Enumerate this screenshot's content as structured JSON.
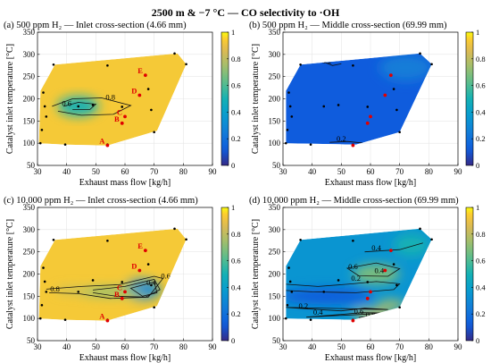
{
  "figure_title": "2500 m & −7 °C — CO selectivity to ·OH",
  "chart_data": [
    {
      "type": "heatmap",
      "panel": "(a)",
      "title": "(a) 500 ppm H₂ — Inlet cross-section (4.66 mm)",
      "xlabel": "Exhaust mass flow [kg/h]",
      "ylabel": "Catalyst inlet temperature [°C]",
      "xlim": [
        30,
        90
      ],
      "ylim": [
        50,
        350
      ],
      "xticks": [
        30,
        40,
        50,
        60,
        70,
        80,
        90
      ],
      "yticks": [
        50,
        100,
        150,
        200,
        250,
        300,
        350
      ],
      "colorbar": {
        "ticks": [
          0,
          0.2,
          0.4,
          0.6,
          0.8,
          1
        ],
        "range": [
          0,
          1
        ],
        "colormap": "parula"
      },
      "hull": [
        [
          30.5,
          100
        ],
        [
          39.5,
          97
        ],
        [
          54,
          95
        ],
        [
          71,
          128
        ],
        [
          81,
          278
        ],
        [
          78,
          302
        ],
        [
          36,
          277
        ],
        [
          31,
          218
        ]
      ],
      "field_default": 0.93,
      "blobs": [
        {
          "x": 44,
          "y": 183,
          "value": 0.5,
          "rx": 7,
          "ry": 22
        }
      ],
      "contours": [
        {
          "level": 0.8,
          "points": [
            [
              35,
              183
            ],
            [
              42,
              200
            ],
            [
              52,
              202
            ],
            [
              62,
              185
            ],
            [
              56,
              165
            ],
            [
              45,
              163
            ],
            [
              37,
              172
            ]
          ]
        },
        {
          "level": 0.6,
          "points": [
            [
              39,
              183
            ],
            [
              44,
              192
            ],
            [
              50,
              188
            ],
            [
              48,
              176
            ],
            [
              42,
              176
            ]
          ]
        }
      ],
      "contour_labels": [
        {
          "text": "0.8",
          "x": 55,
          "y": 198
        },
        {
          "text": "0.6",
          "x": 40,
          "y": 184
        }
      ],
      "sample_points": [
        [
          35.5,
          277
        ],
        [
          54,
          275
        ],
        [
          77,
          302
        ],
        [
          81,
          278
        ],
        [
          32,
          214
        ],
        [
          32.5,
          183
        ],
        [
          33,
          160
        ],
        [
          31.5,
          130
        ],
        [
          31,
          100
        ],
        [
          39.5,
          97
        ],
        [
          54,
          97
        ],
        [
          70,
          125
        ],
        [
          69,
          175
        ],
        [
          68,
          222
        ],
        [
          59,
          182
        ],
        [
          49,
          186
        ],
        [
          44,
          183
        ]
      ],
      "labeled_points": [
        {
          "label": "A",
          "x": 54,
          "y": 95
        },
        {
          "label": "B",
          "x": 59,
          "y": 145
        },
        {
          "label": "C",
          "x": 60,
          "y": 160
        },
        {
          "label": "D",
          "x": 65,
          "y": 208
        },
        {
          "label": "E",
          "x": 67,
          "y": 253
        }
      ]
    },
    {
      "type": "heatmap",
      "panel": "(b)",
      "title": "(b) 500 ppm H₂ — Middle cross-section (69.99 mm)",
      "xlabel": "Exhaust mass flow [kg/h]",
      "ylabel": "Catalyst inlet temperature [°C]",
      "xlim": [
        30,
        90
      ],
      "ylim": [
        50,
        350
      ],
      "xticks": [
        30,
        40,
        50,
        60,
        70,
        80,
        90
      ],
      "yticks": [
        50,
        100,
        150,
        200,
        250,
        300,
        350
      ],
      "colorbar": {
        "ticks": [
          0,
          0.2,
          0.4,
          0.6,
          0.8,
          1
        ],
        "range": [
          0,
          1
        ],
        "colormap": "parula"
      },
      "hull": [
        [
          31,
          100
        ],
        [
          55,
          97
        ],
        [
          70,
          125
        ],
        [
          81,
          278
        ],
        [
          77,
          302
        ],
        [
          36,
          277
        ],
        [
          31,
          218
        ]
      ],
      "field_default": 0.12,
      "blobs": [
        {
          "x": 72,
          "y": 270,
          "value": 0.25,
          "rx": 9,
          "ry": 30
        }
      ],
      "contours": [
        {
          "level": 0.2,
          "points": [
            [
              44,
              283
            ],
            [
              47,
              275
            ],
            [
              50,
              279
            ]
          ]
        },
        {
          "level": 0.2,
          "points": [
            [
              46,
              102
            ],
            [
              52,
              104
            ],
            [
              58,
              100
            ]
          ]
        }
      ],
      "contour_labels": [
        {
          "text": "0.2",
          "x": 45,
          "y": 280
        },
        {
          "text": "0.2",
          "x": 50,
          "y": 104
        }
      ],
      "sample_points": [
        [
          36,
          277
        ],
        [
          54,
          275
        ],
        [
          77,
          302
        ],
        [
          81,
          278
        ],
        [
          32,
          214
        ],
        [
          32.5,
          183
        ],
        [
          33,
          160
        ],
        [
          31.5,
          130
        ],
        [
          31,
          100
        ],
        [
          39.5,
          97
        ],
        [
          54,
          97
        ],
        [
          70,
          125
        ],
        [
          69,
          175
        ],
        [
          68,
          222
        ],
        [
          59,
          182
        ],
        [
          49,
          186
        ],
        [
          44,
          183
        ]
      ],
      "labeled_points": [
        {
          "label": "",
          "x": 54,
          "y": 95
        },
        {
          "label": "",
          "x": 59,
          "y": 145
        },
        {
          "label": "",
          "x": 60,
          "y": 160
        },
        {
          "label": "",
          "x": 65,
          "y": 208
        },
        {
          "label": "",
          "x": 67,
          "y": 253
        }
      ]
    },
    {
      "type": "heatmap",
      "panel": "(c)",
      "title": "(c) 10,000 ppm H₂ — Inlet cross-section (4.66 mm)",
      "xlabel": "Exhaust mass flow [kg/h]",
      "ylabel": "Catalyst inlet temperature [°C]",
      "xlim": [
        30,
        90
      ],
      "ylim": [
        50,
        350
      ],
      "xticks": [
        30,
        40,
        50,
        60,
        70,
        80,
        90
      ],
      "yticks": [
        50,
        100,
        150,
        200,
        250,
        300,
        350
      ],
      "colorbar": {
        "ticks": [
          0,
          0.2,
          0.4,
          0.6,
          0.8,
          1
        ],
        "range": [
          0,
          1
        ],
        "colormap": "parula"
      },
      "hull": [
        [
          30.5,
          100
        ],
        [
          39.5,
          97
        ],
        [
          54,
          95
        ],
        [
          71,
          128
        ],
        [
          81,
          278
        ],
        [
          78,
          302
        ],
        [
          36,
          277
        ],
        [
          31,
          218
        ]
      ],
      "field_default": 0.93,
      "blobs": [
        {
          "x": 66,
          "y": 165,
          "value": 0.3,
          "rx": 6,
          "ry": 22
        },
        {
          "x": 55,
          "y": 160,
          "value": 0.7,
          "rx": 12,
          "ry": 10
        },
        {
          "x": 42,
          "y": 163,
          "value": 0.78,
          "rx": 6,
          "ry": 6
        }
      ],
      "contours": [
        {
          "level": 0.8,
          "points": [
            [
              33,
              166
            ],
            [
              45,
              172
            ],
            [
              58,
              176
            ],
            [
              70,
              195
            ],
            [
              73,
              190
            ],
            [
              68,
              148
            ],
            [
              55,
              145
            ],
            [
              44,
              156
            ],
            [
              34,
              158
            ]
          ]
        },
        {
          "level": 0.6,
          "points": [
            [
              49,
              164
            ],
            [
              60,
              172
            ],
            [
              70,
              188
            ],
            [
              72,
              165
            ],
            [
              67,
              148
            ],
            [
              57,
              150
            ],
            [
              49,
              158
            ]
          ]
        },
        {
          "level": 0.4,
          "points": [
            [
              62,
              168
            ],
            [
              70,
              182
            ],
            [
              71,
              158
            ],
            [
              66,
              150
            ]
          ]
        }
      ],
      "contour_labels": [
        {
          "text": "0.8",
          "x": 36,
          "y": 161
        },
        {
          "text": "0.6",
          "x": 74,
          "y": 190
        },
        {
          "text": "0.4",
          "x": 69,
          "y": 175
        }
      ],
      "sample_points": [
        [
          35.5,
          277
        ],
        [
          54,
          275
        ],
        [
          77,
          302
        ],
        [
          81,
          278
        ],
        [
          32,
          214
        ],
        [
          32.5,
          183
        ],
        [
          33,
          160
        ],
        [
          31.5,
          130
        ],
        [
          31,
          100
        ],
        [
          39.5,
          97
        ],
        [
          54,
          97
        ],
        [
          70,
          125
        ],
        [
          69,
          175
        ],
        [
          68,
          222
        ],
        [
          59,
          182
        ],
        [
          49,
          186
        ],
        [
          44,
          160
        ]
      ],
      "labeled_points": [
        {
          "label": "A",
          "x": 54,
          "y": 95
        },
        {
          "label": "B",
          "x": 59,
          "y": 145
        },
        {
          "label": "C",
          "x": 60,
          "y": 160
        },
        {
          "label": "D",
          "x": 65,
          "y": 208
        },
        {
          "label": "E",
          "x": 67,
          "y": 253
        }
      ]
    },
    {
      "type": "heatmap",
      "panel": "(d)",
      "title": "(d) 10,000 ppm H₂ — Middle cross-section (69.99 mm)",
      "xlabel": "Exhaust mass flow [kg/h]",
      "ylabel": "Catalyst inlet temperature [°C]",
      "xlim": [
        30,
        90
      ],
      "ylim": [
        50,
        350
      ],
      "xticks": [
        30,
        40,
        50,
        60,
        70,
        80,
        90
      ],
      "yticks": [
        50,
        100,
        150,
        200,
        250,
        300,
        350
      ],
      "colorbar": {
        "ticks": [
          0,
          0.2,
          0.4,
          0.6,
          0.8,
          1
        ],
        "range": [
          0,
          1
        ],
        "colormap": "parula"
      },
      "hull": [
        [
          31,
          100
        ],
        [
          54,
          97
        ],
        [
          70,
          125
        ],
        [
          81,
          278
        ],
        [
          77,
          302
        ],
        [
          36,
          277
        ],
        [
          31,
          218
        ]
      ],
      "field_default": 0.35,
      "blobs": [
        {
          "x": 45,
          "y": 150,
          "value": 0.12,
          "rx": 16,
          "ry": 18
        },
        {
          "x": 62,
          "y": 200,
          "value": 0.68,
          "rx": 8,
          "ry": 22
        },
        {
          "x": 60,
          "y": 110,
          "value": 0.9,
          "rx": 6,
          "ry": 10
        },
        {
          "x": 67,
          "y": 130,
          "value": 0.75,
          "rx": 5,
          "ry": 12
        },
        {
          "x": 74,
          "y": 265,
          "value": 0.5,
          "rx": 6,
          "ry": 25
        }
      ],
      "contours": [
        {
          "level": 0.4,
          "points": [
            [
              58,
              250
            ],
            [
              70,
              255
            ],
            [
              78,
              270
            ]
          ]
        },
        {
          "level": 0.6,
          "points": [
            [
              52,
              213
            ],
            [
              62,
              225
            ],
            [
              70,
              212
            ],
            [
              66,
              195
            ],
            [
              56,
              196
            ]
          ]
        },
        {
          "level": 0.2,
          "points": [
            [
              31,
              177
            ],
            [
              42,
              172
            ],
            [
              54,
              178
            ],
            [
              62,
              183
            ],
            [
              70,
              178
            ],
            [
              68,
              165
            ],
            [
              55,
              158
            ],
            [
              40,
              160
            ],
            [
              31,
              163
            ]
          ]
        },
        {
          "level": 0.2,
          "points": [
            [
              31,
              125
            ],
            [
              42,
              120
            ],
            [
              50,
              117
            ],
            [
              58,
              123
            ],
            [
              66,
              120
            ]
          ]
        },
        {
          "level": 0.4,
          "points": [
            [
              38,
              103
            ],
            [
              48,
              108
            ],
            [
              57,
              113
            ],
            [
              66,
              112
            ]
          ]
        },
        {
          "level": 0.8,
          "points": [
            [
              56,
              102
            ],
            [
              61,
              107
            ],
            [
              66,
              104
            ]
          ]
        }
      ],
      "contour_labels": [
        {
          "text": "0.4",
          "x": 62,
          "y": 253
        },
        {
          "text": "0.6",
          "x": 54,
          "y": 211
        },
        {
          "text": "0.4",
          "x": 63,
          "y": 202
        },
        {
          "text": "0.2",
          "x": 55,
          "y": 185
        },
        {
          "text": "0.2",
          "x": 37,
          "y": 122
        },
        {
          "text": "0.4",
          "x": 42,
          "y": 108
        },
        {
          "text": "0.6",
          "x": 56,
          "y": 110
        },
        {
          "text": "0.8",
          "x": 60,
          "y": 102
        }
      ],
      "sample_points": [
        [
          36,
          277
        ],
        [
          54,
          275
        ],
        [
          77,
          302
        ],
        [
          81,
          278
        ],
        [
          32,
          214
        ],
        [
          32.5,
          183
        ],
        [
          33,
          160
        ],
        [
          31.5,
          130
        ],
        [
          31,
          100
        ],
        [
          39.5,
          97
        ],
        [
          54,
          97
        ],
        [
          70,
          125
        ],
        [
          69,
          175
        ],
        [
          68,
          222
        ],
        [
          59,
          182
        ],
        [
          49,
          186
        ],
        [
          44,
          160
        ]
      ],
      "labeled_points": [
        {
          "label": "",
          "x": 54,
          "y": 95
        },
        {
          "label": "",
          "x": 59,
          "y": 145
        },
        {
          "label": "",
          "x": 60,
          "y": 160
        },
        {
          "label": "",
          "x": 65,
          "y": 208
        },
        {
          "label": "",
          "x": 67,
          "y": 253
        }
      ]
    }
  ]
}
